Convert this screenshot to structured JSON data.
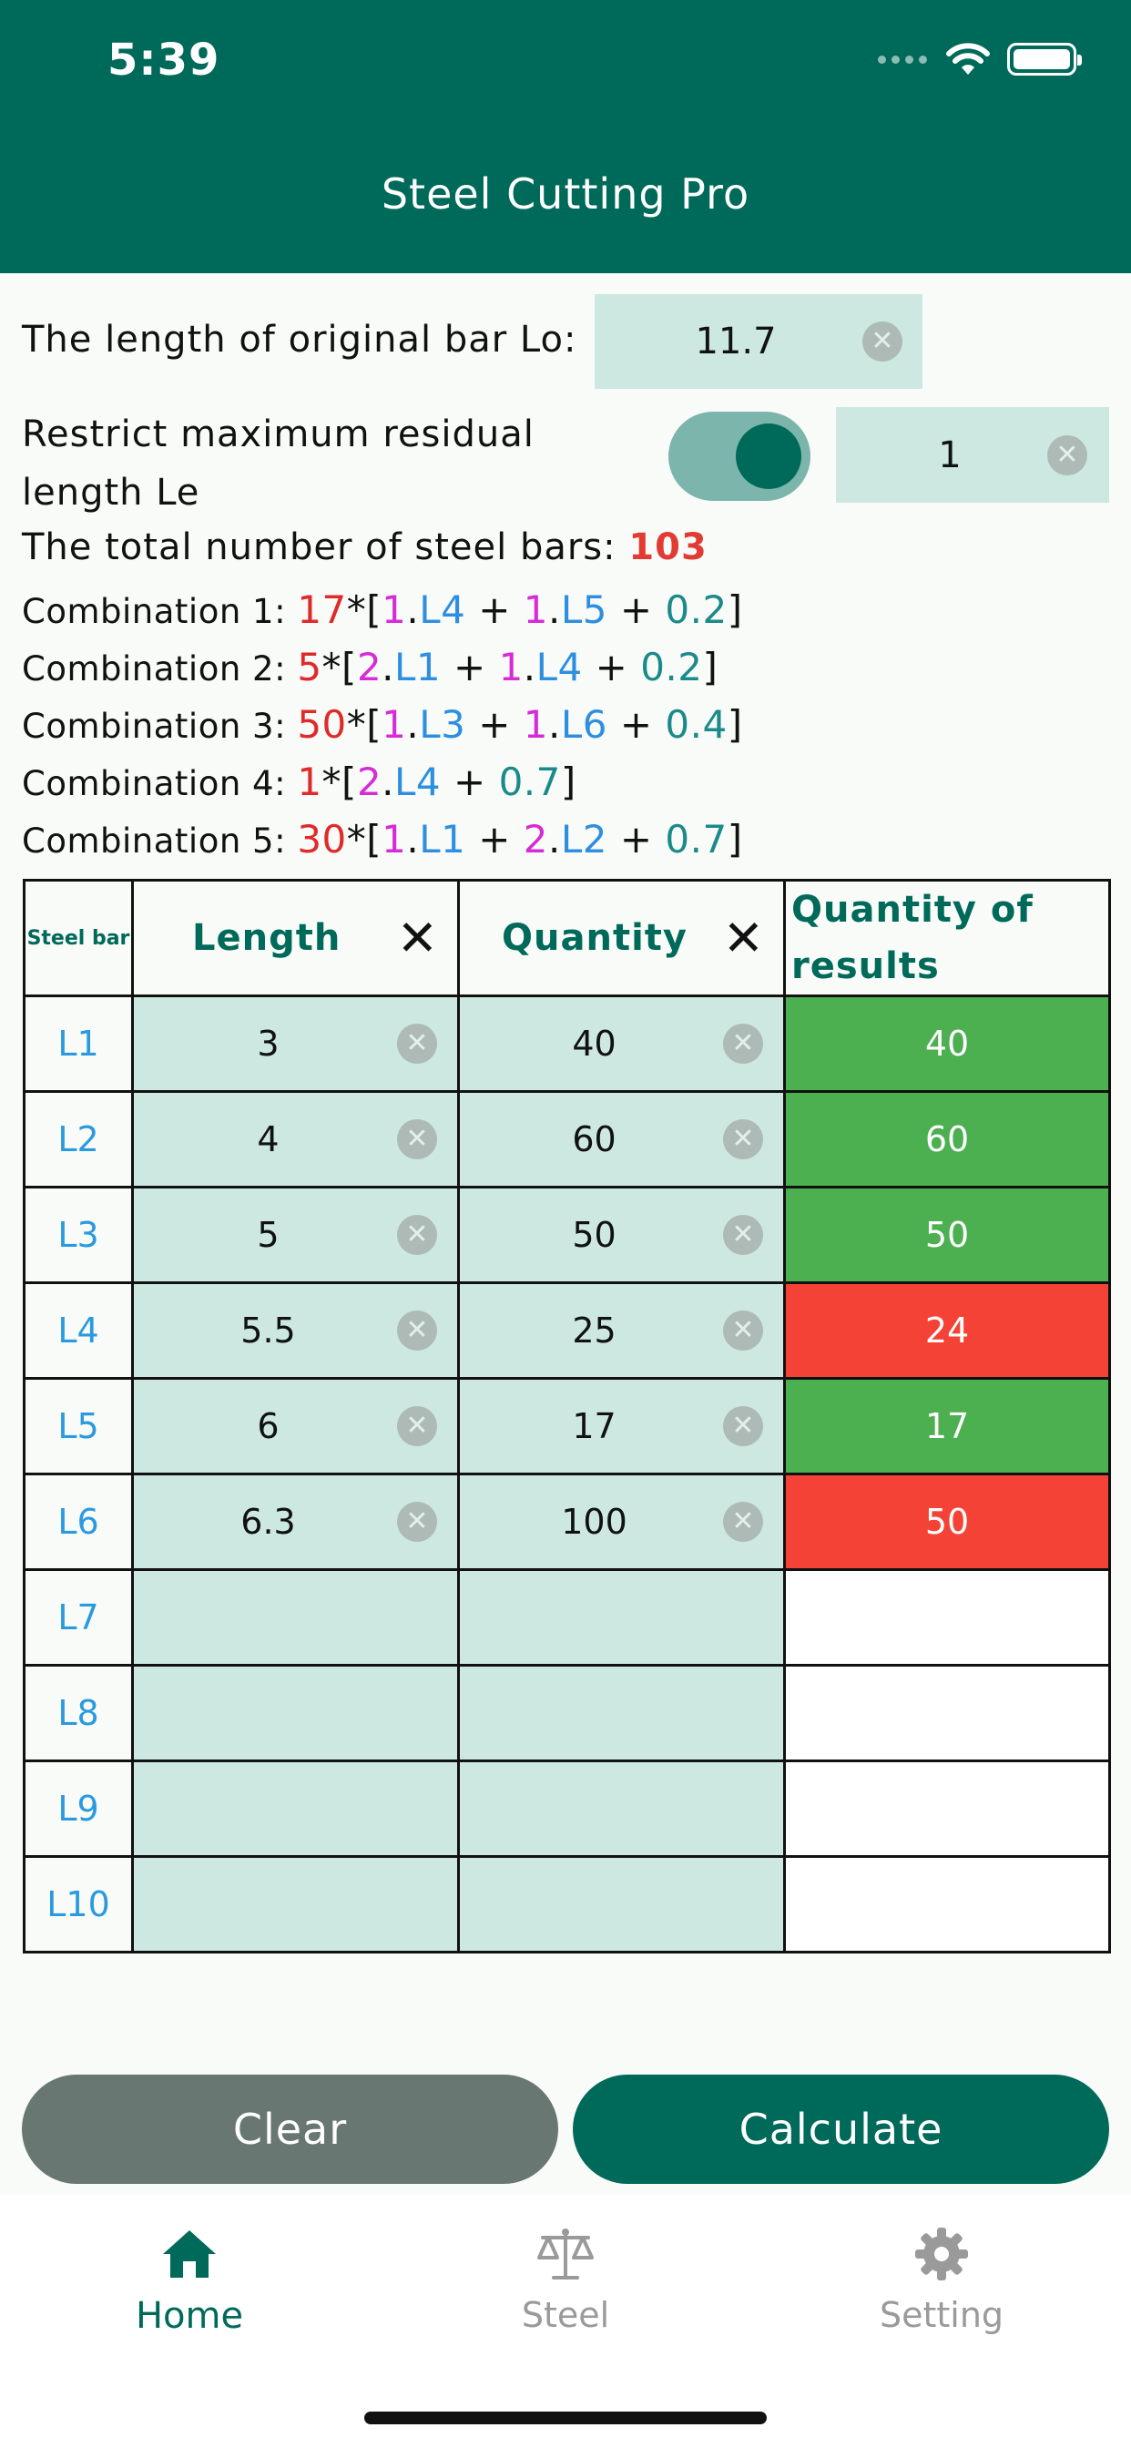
{
  "status_bar": {
    "time": "5:39"
  },
  "header": {
    "title": "Steel Cutting Pro"
  },
  "original_bar": {
    "label": "The length of original bar Lo:",
    "value": "11.7"
  },
  "residual": {
    "label_line1": "Restrict maximum residual",
    "label_line2": "length Le",
    "enabled": true,
    "value": "1"
  },
  "summary": {
    "label": "The total number of steel bars: ",
    "total": "103"
  },
  "combinations": [
    {
      "label": "Combination 1: ",
      "count": "17",
      "terms": [
        {
          "n": "1",
          "bar": "L4"
        },
        {
          "n": "1",
          "bar": "L5"
        }
      ],
      "remainder": "0.2"
    },
    {
      "label": "Combination 2: ",
      "count": "5",
      "terms": [
        {
          "n": "2",
          "bar": "L1"
        },
        {
          "n": "1",
          "bar": "L4"
        }
      ],
      "remainder": "0.2"
    },
    {
      "label": "Combination 3: ",
      "count": "50",
      "terms": [
        {
          "n": "1",
          "bar": "L3"
        },
        {
          "n": "1",
          "bar": "L6"
        }
      ],
      "remainder": "0.4"
    },
    {
      "label": "Combination 4: ",
      "count": "1",
      "terms": [
        {
          "n": "2",
          "bar": "L4"
        }
      ],
      "remainder": "0.7"
    },
    {
      "label": "Combination 5: ",
      "count": "30",
      "terms": [
        {
          "n": "1",
          "bar": "L1"
        },
        {
          "n": "2",
          "bar": "L2"
        }
      ],
      "remainder": "0.7"
    }
  ],
  "table": {
    "headers": {
      "bar": "Steel bar",
      "length": "Length",
      "quantity": "Quantity",
      "results_line1": "Quantity of",
      "results_line2": "results"
    },
    "rows": [
      {
        "bar": "L1",
        "length": "3",
        "quantity": "40",
        "result": "40",
        "status": "ok"
      },
      {
        "bar": "L2",
        "length": "4",
        "quantity": "60",
        "result": "60",
        "status": "ok"
      },
      {
        "bar": "L3",
        "length": "5",
        "quantity": "50",
        "result": "50",
        "status": "ok"
      },
      {
        "bar": "L4",
        "length": "5.5",
        "quantity": "25",
        "result": "24",
        "status": "short"
      },
      {
        "bar": "L5",
        "length": "6",
        "quantity": "17",
        "result": "17",
        "status": "ok"
      },
      {
        "bar": "L6",
        "length": "6.3",
        "quantity": "100",
        "result": "50",
        "status": "short"
      },
      {
        "bar": "L7",
        "length": "",
        "quantity": "",
        "result": "",
        "status": "empty"
      },
      {
        "bar": "L8",
        "length": "",
        "quantity": "",
        "result": "",
        "status": "empty"
      },
      {
        "bar": "L9",
        "length": "",
        "quantity": "",
        "result": "",
        "status": "empty"
      },
      {
        "bar": "L10",
        "length": "",
        "quantity": "",
        "result": "",
        "status": "empty"
      }
    ]
  },
  "buttons": {
    "clear": "Clear",
    "calculate": "Calculate"
  },
  "tabs": [
    {
      "label": "Home",
      "icon": "home-icon",
      "active": true
    },
    {
      "label": "Steel",
      "icon": "scale-icon",
      "active": false
    },
    {
      "label": "Setting",
      "icon": "gear-icon",
      "active": false
    }
  ],
  "colors": {
    "primary": "#006a5a",
    "input_bg": "#cce8e1",
    "ok": "#4caf50",
    "short": "#f44336",
    "total": "#e23b33"
  }
}
